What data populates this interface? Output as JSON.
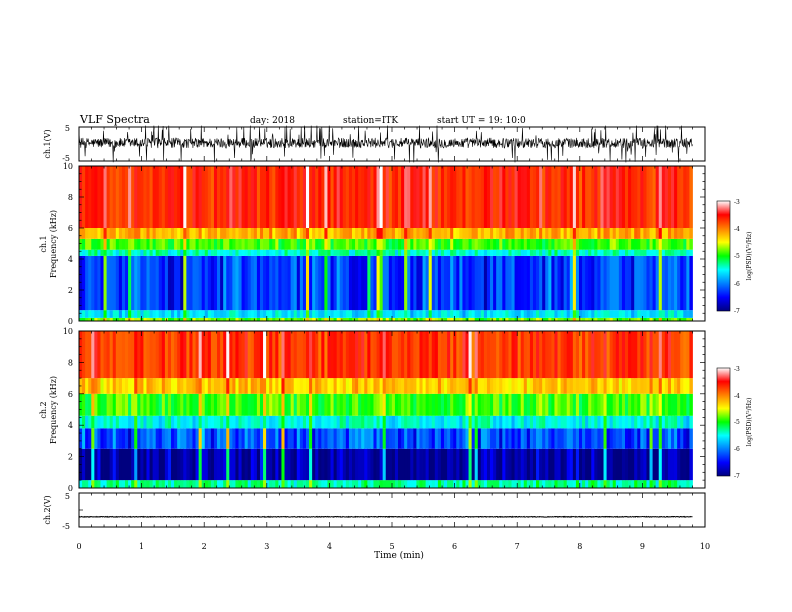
{
  "header": {
    "title": "VLF Spectra",
    "day_label": "day:  2018",
    "station_label": "station=ITK",
    "start_ut_label": "start UT =  19: 10:0"
  },
  "chart_data": {
    "type": "heatmap",
    "xlabel": "Time (min)",
    "xlim": [
      0,
      10
    ],
    "x_ticks": [
      "0",
      "1",
      "2",
      "3",
      "4",
      "5",
      "6",
      "7",
      "8",
      "9",
      "10"
    ],
    "data_end_min": 9.8,
    "panels": [
      {
        "id": "ch1-waveform",
        "type": "line",
        "ylabel": "ch.1(V)",
        "ylim": [
          -5,
          5
        ],
        "y_ticks": [
          "5",
          "-5"
        ],
        "baseline": 0.3,
        "amplitude": 1.5,
        "color": "#000000"
      },
      {
        "id": "ch1-spectrogram",
        "type": "heatmap",
        "ylabel_line1": "ch.1",
        "ylabel_line2": "Frequency (kHz)",
        "ylim": [
          0,
          10
        ],
        "y_ticks": [
          "0",
          "2",
          "4",
          "6",
          "8",
          "10"
        ],
        "bands_khz": [
          {
            "from": 0.0,
            "to": 0.2,
            "level": -4.8
          },
          {
            "from": 0.2,
            "to": 0.7,
            "level": -5.6
          },
          {
            "from": 0.7,
            "to": 4.2,
            "level": -6.3
          },
          {
            "from": 4.2,
            "to": 4.6,
            "level": -5.4
          },
          {
            "from": 4.6,
            "to": 5.3,
            "level": -4.9
          },
          {
            "from": 5.3,
            "to": 6.0,
            "level": -4.2
          },
          {
            "from": 6.0,
            "to": 10.0,
            "level": -3.6
          }
        ],
        "colorbar": {
          "label": "log(PSD)(V²/Hz)",
          "ticks": [
            "-3",
            "-4",
            "-5",
            "-6",
            "-7"
          ],
          "range": [
            -7,
            -3
          ]
        }
      },
      {
        "id": "ch2-spectrogram",
        "type": "heatmap",
        "ylabel_line1": "ch.2",
        "ylabel_line2": "Frequency (kHz)",
        "ylim": [
          0,
          10
        ],
        "y_ticks": [
          "0",
          "2",
          "4",
          "6",
          "8",
          "10"
        ],
        "bands_khz": [
          {
            "from": 0.0,
            "to": 0.5,
            "level": -5.3
          },
          {
            "from": 0.5,
            "to": 2.5,
            "level": -6.9
          },
          {
            "from": 2.5,
            "to": 3.8,
            "level": -6.2
          },
          {
            "from": 3.8,
            "to": 4.6,
            "level": -5.5
          },
          {
            "from": 4.6,
            "to": 6.0,
            "level": -4.9
          },
          {
            "from": 6.0,
            "to": 7.0,
            "level": -4.3
          },
          {
            "from": 7.0,
            "to": 10.0,
            "level": -3.7
          }
        ],
        "colorbar": {
          "label": "log(PSD)(V²/Hz)",
          "ticks": [
            "-3",
            "-4",
            "-5",
            "-6",
            "-7"
          ],
          "range": [
            -7,
            -3
          ]
        }
      },
      {
        "id": "ch2-waveform",
        "type": "line",
        "ylabel": "ch.2(V)",
        "ylim": [
          -5,
          5
        ],
        "y_ticks": [
          "5",
          "-5"
        ],
        "baseline": -2.0,
        "amplitude": 0.1,
        "color": "#000000"
      }
    ]
  }
}
